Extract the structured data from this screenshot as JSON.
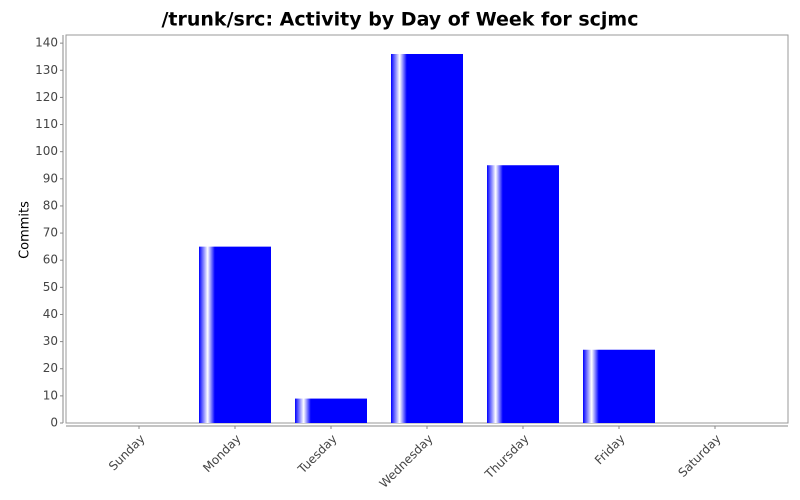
{
  "chart_data": {
    "type": "bar",
    "title": "/trunk/src: Activity by Day of Week for scjmc",
    "y_label": "Commits",
    "categories": [
      "Sunday",
      "Monday",
      "Tuesday",
      "Wednesday",
      "Thursday",
      "Friday",
      "Saturday"
    ],
    "values": [
      0,
      65,
      9,
      136,
      95,
      27,
      0
    ],
    "color": "#0000ff",
    "ylim": [
      0,
      143
    ],
    "yticks": [
      0,
      10,
      20,
      30,
      40,
      50,
      60,
      70,
      80,
      90,
      100,
      110,
      120,
      130,
      140
    ],
    "grid": false
  }
}
